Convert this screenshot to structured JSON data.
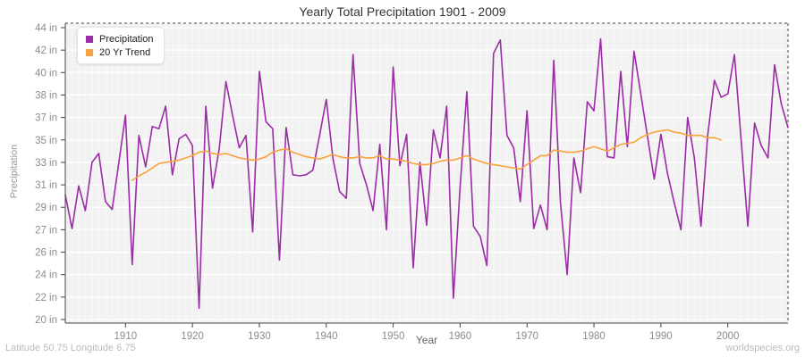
{
  "footer": {
    "left": "Latitude 50.75 Longitude 6.75",
    "right": "worldspecies.org"
  },
  "colors": {
    "precipitation": "#9C2BA6",
    "trend": "#F9A23C",
    "plot_background": "#f2f2f2",
    "gridline": "#ffffff",
    "axis": "#444444",
    "tick_text": "#8c8c8c",
    "title_text": "#333333",
    "footer_text": "#bbbbbb"
  },
  "chart_data": {
    "type": "line",
    "title": "Yearly Total Precipitation 1901 - 2009",
    "xlabel": "Year",
    "ylabel": "Precipitation",
    "x_range": [
      1901,
      2009
    ],
    "x_ticks": [
      1910,
      1920,
      1930,
      1940,
      1950,
      1960,
      1970,
      1980,
      1990,
      2000
    ],
    "y_axis": {
      "tick_labels": [
        "44 in",
        "42 in",
        "40 in",
        "38 in",
        "37 in",
        "35 in",
        "33 in",
        "31 in",
        "29 in",
        "27 in",
        "26 in",
        "24 in",
        "22 in",
        "20 in"
      ],
      "tick_values": [
        44,
        42,
        40,
        38,
        37,
        35,
        33,
        31,
        29,
        27,
        26,
        24,
        22,
        20
      ]
    },
    "legend_position": "top-left",
    "grid": true,
    "series": [
      {
        "name": "Precipitation",
        "color": "#9C2BA6",
        "start_year": 1901,
        "values": [
          30.1,
          27.1,
          30.9,
          28.7,
          33.0,
          33.8,
          29.5,
          28.8,
          33.0,
          37.1,
          24.9,
          35.4,
          32.6,
          36.2,
          36.0,
          37.5,
          31.9,
          35.1,
          35.5,
          34.5,
          21.0,
          37.5,
          30.7,
          34.2,
          39.2,
          37.1,
          34.3,
          35.4,
          26.9,
          40.1,
          36.6,
          36.0,
          25.3,
          36.1,
          31.9,
          31.8,
          31.9,
          32.3,
          35.4,
          37.8,
          33.3,
          30.4,
          29.8,
          41.6,
          32.9,
          31.0,
          28.7,
          34.6,
          27.0,
          40.5,
          32.7,
          35.5,
          24.6,
          33.0,
          27.4,
          35.9,
          33.4,
          37.5,
          21.9,
          30.8,
          38.3,
          27.3,
          26.7,
          24.8,
          41.7,
          42.9,
          35.4,
          34.3,
          29.5,
          37.3,
          27.1,
          29.2,
          27.0,
          41.1,
          29.4,
          24.0,
          33.4,
          30.3,
          37.7,
          37.3,
          43.0,
          33.5,
          33.4,
          40.1,
          34.4,
          41.9,
          38.1,
          35.3,
          31.5,
          35.5,
          32.0,
          29.4,
          27.0,
          37.0,
          33.4,
          27.3,
          35.4,
          39.3,
          37.9,
          38.1,
          41.6,
          35.0,
          27.3,
          36.5,
          34.5,
          33.4,
          40.7,
          37.6,
          36.1
        ]
      },
      {
        "name": "20 Yr Trend",
        "color": "#F9A23C",
        "start_year": 1911,
        "values": [
          31.4,
          31.8,
          32.1,
          32.5,
          32.9,
          33.0,
          33.1,
          33.2,
          33.4,
          33.6,
          33.9,
          34.0,
          33.8,
          33.7,
          33.8,
          33.6,
          33.4,
          33.3,
          33.2,
          33.3,
          33.5,
          33.9,
          34.1,
          34.2,
          33.9,
          33.7,
          33.5,
          33.4,
          33.3,
          33.5,
          33.7,
          33.5,
          33.4,
          33.4,
          33.5,
          33.4,
          33.4,
          33.6,
          33.3,
          33.3,
          33.2,
          33.1,
          32.9,
          32.8,
          32.8,
          32.9,
          33.1,
          33.2,
          33.2,
          33.4,
          33.6,
          33.3,
          33.1,
          32.9,
          32.8,
          32.7,
          32.6,
          32.5,
          32.4,
          32.8,
          33.2,
          33.6,
          33.6,
          34.1,
          34.0,
          33.9,
          33.9,
          34.0,
          34.2,
          34.4,
          34.2,
          34.0,
          34.3,
          34.6,
          34.7,
          34.8,
          35.2,
          35.5,
          35.7,
          35.8,
          35.9,
          35.7,
          35.6,
          35.4,
          35.4,
          35.4,
          35.2,
          35.2,
          35.0
        ]
      }
    ]
  }
}
